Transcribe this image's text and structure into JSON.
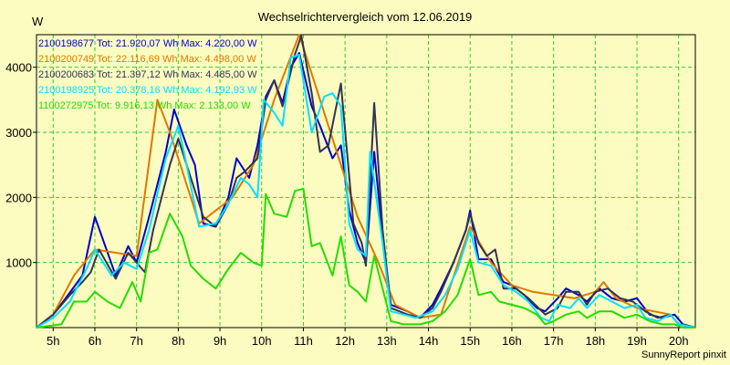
{
  "colors": {
    "background": "#fcfcc0",
    "grid": "#33cc33"
  },
  "chart_data": {
    "type": "line",
    "title": "Wechselrichtervergleich vom 12.06.2019",
    "ylabel": "W",
    "xlabel": "",
    "footer": "SunnyReport pinxit",
    "xlim": [
      4.6,
      20.4
    ],
    "ylim": [
      0,
      4500
    ],
    "grid": true,
    "legend_position": "top-left",
    "x_ticks": [
      {
        "x": 5,
        "label": "5h"
      },
      {
        "x": 6,
        "label": "6h"
      },
      {
        "x": 7,
        "label": "7h"
      },
      {
        "x": 8,
        "label": "8h"
      },
      {
        "x": 9,
        "label": "9h"
      },
      {
        "x": 10,
        "label": "10h"
      },
      {
        "x": 11,
        "label": "11h"
      },
      {
        "x": 12,
        "label": "12h"
      },
      {
        "x": 13,
        "label": "13h"
      },
      {
        "x": 14,
        "label": "14h"
      },
      {
        "x": 15,
        "label": "15h"
      },
      {
        "x": 16,
        "label": "16h"
      },
      {
        "x": 17,
        "label": "17h"
      },
      {
        "x": 18,
        "label": "18h"
      },
      {
        "x": 19,
        "label": "19h"
      },
      {
        "x": 20,
        "label": "20h"
      }
    ],
    "y_ticks": [
      {
        "y": 1000,
        "label": "1000"
      },
      {
        "y": 2000,
        "label": "2000"
      },
      {
        "y": 3000,
        "label": "3000"
      },
      {
        "y": 4000,
        "label": "4000"
      }
    ],
    "series": [
      {
        "name": "2100198677 Tot: 21.920,07 Wh Max: 4.220,00 W",
        "color": "#0000cc",
        "points": [
          [
            4.6,
            0
          ],
          [
            5.0,
            200
          ],
          [
            5.3,
            450
          ],
          [
            5.7,
            800
          ],
          [
            6.0,
            1700
          ],
          [
            6.5,
            800
          ],
          [
            6.8,
            1250
          ],
          [
            7.0,
            1000
          ],
          [
            7.3,
            1700
          ],
          [
            7.7,
            2700
          ],
          [
            7.9,
            3350
          ],
          [
            8.2,
            2800
          ],
          [
            8.4,
            2500
          ],
          [
            8.6,
            1600
          ],
          [
            8.9,
            1550
          ],
          [
            9.2,
            2000
          ],
          [
            9.4,
            2600
          ],
          [
            9.7,
            2300
          ],
          [
            9.9,
            2800
          ],
          [
            10.1,
            3550
          ],
          [
            10.3,
            3800
          ],
          [
            10.5,
            3450
          ],
          [
            10.7,
            4000
          ],
          [
            10.9,
            4220
          ],
          [
            11.2,
            3400
          ],
          [
            11.4,
            3100
          ],
          [
            11.7,
            2600
          ],
          [
            11.9,
            2800
          ],
          [
            12.1,
            1800
          ],
          [
            12.3,
            1300
          ],
          [
            12.5,
            1000
          ],
          [
            12.7,
            2700
          ],
          [
            12.9,
            1400
          ],
          [
            13.1,
            350
          ],
          [
            13.5,
            250
          ],
          [
            13.8,
            150
          ],
          [
            14.1,
            350
          ],
          [
            14.3,
            600
          ],
          [
            14.6,
            1000
          ],
          [
            14.9,
            1500
          ],
          [
            15.0,
            1800
          ],
          [
            15.2,
            1050
          ],
          [
            15.5,
            1050
          ],
          [
            15.8,
            700
          ],
          [
            16.0,
            650
          ],
          [
            16.3,
            500
          ],
          [
            16.6,
            300
          ],
          [
            16.8,
            250
          ],
          [
            17.1,
            450
          ],
          [
            17.3,
            600
          ],
          [
            17.6,
            500
          ],
          [
            17.8,
            400
          ],
          [
            18.1,
            600
          ],
          [
            18.4,
            450
          ],
          [
            18.7,
            400
          ],
          [
            19.0,
            450
          ],
          [
            19.3,
            200
          ],
          [
            19.6,
            150
          ],
          [
            19.9,
            200
          ],
          [
            20.1,
            50
          ],
          [
            20.4,
            0
          ]
        ]
      },
      {
        "name": "2100200749 Tot: 22.116,69 Wh Max: 4.498,00 W",
        "color": "#e07800",
        "points": [
          [
            4.6,
            0
          ],
          [
            5.0,
            200
          ],
          [
            5.5,
            800
          ],
          [
            6.0,
            1200
          ],
          [
            7.0,
            1100
          ],
          [
            7.5,
            3500
          ],
          [
            7.8,
            3000
          ],
          [
            8.5,
            1600
          ],
          [
            9.3,
            2000
          ],
          [
            9.8,
            2500
          ],
          [
            10.3,
            3500
          ],
          [
            10.9,
            4498
          ],
          [
            12.3,
            1700
          ],
          [
            12.8,
            1000
          ],
          [
            13.2,
            350
          ],
          [
            13.8,
            150
          ],
          [
            14.3,
            200
          ],
          [
            15.0,
            1550
          ],
          [
            15.5,
            1000
          ],
          [
            16.0,
            650
          ],
          [
            16.5,
            550
          ],
          [
            17.0,
            500
          ],
          [
            17.5,
            450
          ],
          [
            18.0,
            550
          ],
          [
            18.2,
            700
          ],
          [
            18.5,
            450
          ],
          [
            19.0,
            300
          ],
          [
            19.8,
            200
          ]
        ]
      },
      {
        "name": "2100200683 Tot: 21.397,12 Wh Max: 4.485,00 W",
        "color": "#333355",
        "points": [
          [
            4.6,
            0
          ],
          [
            5.0,
            200
          ],
          [
            5.4,
            500
          ],
          [
            5.7,
            700
          ],
          [
            5.9,
            850
          ],
          [
            6.1,
            1200
          ],
          [
            6.5,
            750
          ],
          [
            6.8,
            1150
          ],
          [
            7.2,
            850
          ],
          [
            7.4,
            1500
          ],
          [
            7.8,
            2500
          ],
          [
            8.0,
            2900
          ],
          [
            8.3,
            2300
          ],
          [
            8.6,
            1700
          ],
          [
            8.9,
            1550
          ],
          [
            9.2,
            1900
          ],
          [
            9.4,
            2300
          ],
          [
            9.6,
            2400
          ],
          [
            9.9,
            2600
          ],
          [
            10.1,
            3500
          ],
          [
            10.3,
            3800
          ],
          [
            10.5,
            3400
          ],
          [
            10.8,
            4200
          ],
          [
            10.95,
            4485
          ],
          [
            11.2,
            3600
          ],
          [
            11.4,
            2700
          ],
          [
            11.6,
            2800
          ],
          [
            11.9,
            3750
          ],
          [
            12.2,
            1600
          ],
          [
            12.4,
            1300
          ],
          [
            12.5,
            950
          ],
          [
            12.7,
            3450
          ],
          [
            12.9,
            1500
          ],
          [
            13.1,
            300
          ],
          [
            13.5,
            200
          ],
          [
            13.8,
            150
          ],
          [
            14.1,
            300
          ],
          [
            14.3,
            550
          ],
          [
            14.6,
            1000
          ],
          [
            14.9,
            1500
          ],
          [
            15.0,
            1750
          ],
          [
            15.2,
            1300
          ],
          [
            15.4,
            1100
          ],
          [
            15.6,
            1200
          ],
          [
            15.8,
            600
          ],
          [
            16.1,
            600
          ],
          [
            16.4,
            450
          ],
          [
            16.8,
            200
          ],
          [
            17.1,
            300
          ],
          [
            17.3,
            550
          ],
          [
            17.6,
            550
          ],
          [
            17.8,
            350
          ],
          [
            18.0,
            550
          ],
          [
            18.3,
            600
          ],
          [
            18.6,
            450
          ],
          [
            18.9,
            400
          ],
          [
            19.2,
            250
          ],
          [
            19.5,
            150
          ],
          [
            19.8,
            200
          ],
          [
            20.0,
            50
          ],
          [
            20.4,
            0
          ]
        ]
      },
      {
        "name": "2100198925 Tot: 20.378,16 Wh Max: 4.192,93 W",
        "color": "#00e0ff",
        "points": [
          [
            4.6,
            0
          ],
          [
            5.0,
            150
          ],
          [
            5.4,
            400
          ],
          [
            5.8,
            900
          ],
          [
            6.0,
            1200
          ],
          [
            6.4,
            800
          ],
          [
            6.7,
            1000
          ],
          [
            7.0,
            900
          ],
          [
            7.3,
            1500
          ],
          [
            7.7,
            2600
          ],
          [
            8.0,
            3100
          ],
          [
            8.2,
            2500
          ],
          [
            8.5,
            1550
          ],
          [
            8.9,
            1600
          ],
          [
            9.2,
            1900
          ],
          [
            9.5,
            2300
          ],
          [
            9.7,
            2200
          ],
          [
            9.9,
            2000
          ],
          [
            10.05,
            3500
          ],
          [
            10.3,
            3300
          ],
          [
            10.5,
            3100
          ],
          [
            10.7,
            4150
          ],
          [
            10.9,
            4190
          ],
          [
            11.2,
            3000
          ],
          [
            11.5,
            3550
          ],
          [
            11.7,
            3600
          ],
          [
            11.9,
            3400
          ],
          [
            12.1,
            1600
          ],
          [
            12.3,
            1200
          ],
          [
            12.5,
            1100
          ],
          [
            12.6,
            2700
          ],
          [
            12.9,
            1300
          ],
          [
            13.1,
            250
          ],
          [
            13.4,
            200
          ],
          [
            13.7,
            150
          ],
          [
            14.1,
            250
          ],
          [
            14.4,
            500
          ],
          [
            14.7,
            900
          ],
          [
            15.0,
            1500
          ],
          [
            15.2,
            1000
          ],
          [
            15.5,
            950
          ],
          [
            15.8,
            650
          ],
          [
            16.1,
            550
          ],
          [
            16.4,
            400
          ],
          [
            16.7,
            150
          ],
          [
            16.9,
            100
          ],
          [
            17.1,
            350
          ],
          [
            17.4,
            300
          ],
          [
            17.6,
            450
          ],
          [
            17.8,
            300
          ],
          [
            18.1,
            500
          ],
          [
            18.4,
            400
          ],
          [
            18.7,
            300
          ],
          [
            19.0,
            350
          ],
          [
            19.2,
            150
          ],
          [
            19.5,
            100
          ],
          [
            19.8,
            200
          ],
          [
            20.0,
            50
          ],
          [
            20.4,
            0
          ]
        ]
      },
      {
        "name": "1100272975 Tot: 9.916,13 Wh Max: 2.133,00 W",
        "color": "#22dd00",
        "points": [
          [
            4.6,
            0
          ],
          [
            5.2,
            50
          ],
          [
            5.5,
            400
          ],
          [
            5.8,
            400
          ],
          [
            6.0,
            550
          ],
          [
            6.3,
            400
          ],
          [
            6.6,
            300
          ],
          [
            6.9,
            700
          ],
          [
            7.1,
            400
          ],
          [
            7.3,
            1150
          ],
          [
            7.5,
            1200
          ],
          [
            7.8,
            1750
          ],
          [
            8.1,
            1400
          ],
          [
            8.3,
            950
          ],
          [
            8.6,
            750
          ],
          [
            8.9,
            600
          ],
          [
            9.2,
            900
          ],
          [
            9.5,
            1150
          ],
          [
            9.8,
            1000
          ],
          [
            10.0,
            950
          ],
          [
            10.1,
            2050
          ],
          [
            10.3,
            1750
          ],
          [
            10.6,
            1700
          ],
          [
            10.8,
            2100
          ],
          [
            11.0,
            2133
          ],
          [
            11.2,
            1250
          ],
          [
            11.4,
            1300
          ],
          [
            11.7,
            800
          ],
          [
            11.9,
            1400
          ],
          [
            12.1,
            650
          ],
          [
            12.3,
            550
          ],
          [
            12.5,
            400
          ],
          [
            12.7,
            1100
          ],
          [
            12.9,
            600
          ],
          [
            13.1,
            100
          ],
          [
            13.4,
            50
          ],
          [
            13.8,
            50
          ],
          [
            14.1,
            100
          ],
          [
            14.4,
            250
          ],
          [
            14.7,
            500
          ],
          [
            15.0,
            1050
          ],
          [
            15.2,
            500
          ],
          [
            15.5,
            550
          ],
          [
            15.7,
            400
          ],
          [
            16.0,
            350
          ],
          [
            16.3,
            300
          ],
          [
            16.6,
            200
          ],
          [
            16.8,
            50
          ],
          [
            17.0,
            100
          ],
          [
            17.3,
            200
          ],
          [
            17.6,
            250
          ],
          [
            17.8,
            150
          ],
          [
            18.1,
            250
          ],
          [
            18.4,
            250
          ],
          [
            18.7,
            150
          ],
          [
            19.0,
            200
          ],
          [
            19.3,
            100
          ],
          [
            19.6,
            50
          ],
          [
            19.9,
            50
          ],
          [
            20.1,
            0
          ],
          [
            20.4,
            0
          ]
        ]
      }
    ]
  }
}
